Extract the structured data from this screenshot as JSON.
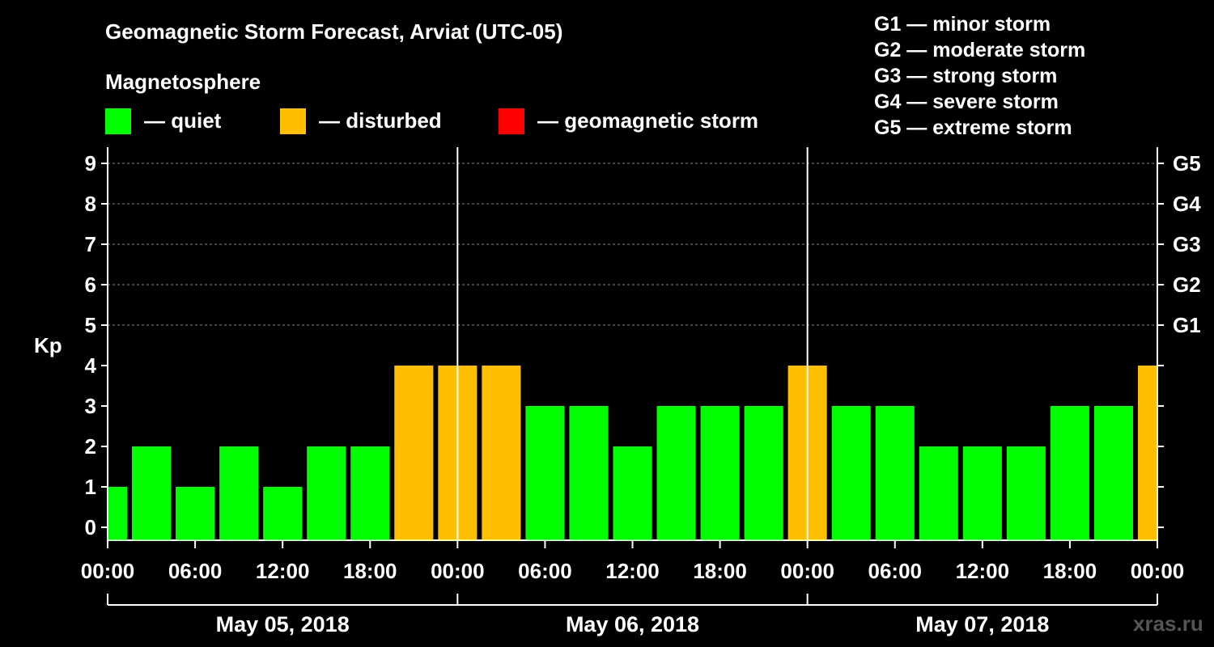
{
  "title": "Geomagnetic Storm Forecast, Arviat (UTC-05)",
  "legend": {
    "heading": "Magnetosphere",
    "items": [
      {
        "label": "— quiet",
        "color": "#00ff00"
      },
      {
        "label": "— disturbed",
        "color": "#ffbf00"
      },
      {
        "label": "— geomagnetic storm",
        "color": "#ff0000"
      }
    ]
  },
  "g_scale": [
    "G1 — minor storm",
    "G2 — moderate storm",
    "G3 — strong storm",
    "G4 — severe storm",
    "G5 — extreme storm"
  ],
  "watermark": "xras.ru",
  "chart_data": {
    "type": "bar",
    "ylabel": "Kp",
    "ylim": [
      0,
      9
    ],
    "y_ticks": [
      "0",
      "1",
      "2",
      "3",
      "4",
      "5",
      "6",
      "7",
      "8",
      "9"
    ],
    "right_ticks": [
      {
        "kp": 5,
        "label": "G1"
      },
      {
        "kp": 6,
        "label": "G2"
      },
      {
        "kp": 7,
        "label": "G3"
      },
      {
        "kp": 8,
        "label": "G4"
      },
      {
        "kp": 9,
        "label": "G5"
      }
    ],
    "x_tick_labels": [
      "00:00",
      "06:00",
      "12:00",
      "18:00",
      "00:00",
      "06:00",
      "12:00",
      "18:00",
      "00:00",
      "06:00",
      "12:00",
      "18:00",
      "00:00"
    ],
    "days": [
      "May 05, 2018",
      "May 06, 2018",
      "May 07, 2018"
    ],
    "grid": "dashed horizontal at Kp 5-9",
    "series": [
      {
        "values": [
          1,
          2,
          1,
          2,
          1,
          2,
          2,
          4,
          4,
          4,
          3,
          3,
          2,
          3,
          3,
          3,
          4,
          3,
          3,
          2,
          2,
          2,
          3,
          3,
          4
        ],
        "colors": [
          "#00ff00",
          "#00ff00",
          "#00ff00",
          "#00ff00",
          "#00ff00",
          "#00ff00",
          "#00ff00",
          "#ffbf00",
          "#ffbf00",
          "#ffbf00",
          "#00ff00",
          "#00ff00",
          "#00ff00",
          "#00ff00",
          "#00ff00",
          "#00ff00",
          "#ffbf00",
          "#00ff00",
          "#00ff00",
          "#00ff00",
          "#00ff00",
          "#00ff00",
          "#00ff00",
          "#00ff00",
          "#ffbf00"
        ]
      }
    ]
  }
}
